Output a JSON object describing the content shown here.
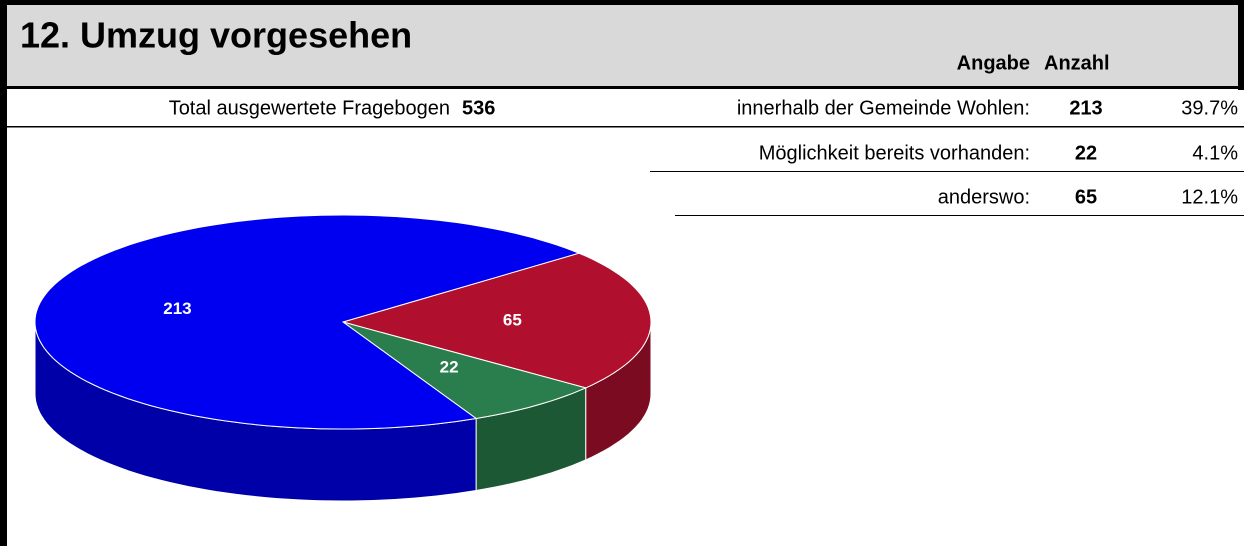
{
  "header": {
    "title": "12. Umzug vorgesehen",
    "columns": [
      "Angabe",
      "Anzahl"
    ]
  },
  "total": {
    "label": "Total ausgewertete Fragebogen",
    "value": "536"
  },
  "table": {
    "rows": [
      [
        "innerhalb der Gemeinde Wohlen:",
        "213",
        "39.7%"
      ],
      [
        "Möglichkeit bereits vorhanden:",
        "22",
        "4.1%"
      ],
      [
        "anderswo:",
        "65",
        "12.1%"
      ]
    ]
  },
  "chart_data": {
    "type": "pie",
    "categories": [
      "innerhalb der Gemeinde Wohlen",
      "Möglichkeit bereits vorhanden",
      "anderswo"
    ],
    "values": [
      213,
      22,
      65
    ],
    "colors": [
      "#0000f0",
      "#2a7d4c",
      "#b0102e"
    ]
  }
}
